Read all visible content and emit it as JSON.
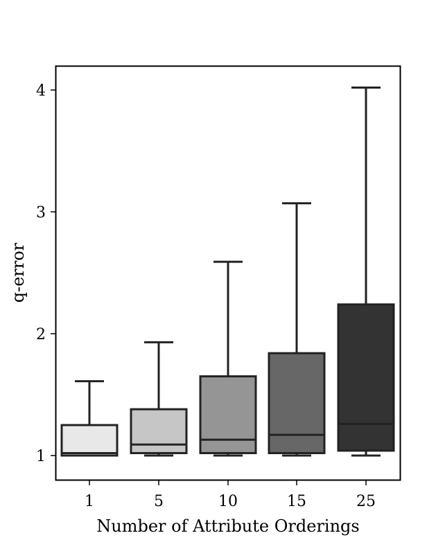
{
  "chart_data": {
    "type": "box",
    "title": "",
    "xlabel": "Number of Attribute Orderings",
    "ylabel": "q-error",
    "categories": [
      "1",
      "5",
      "10",
      "15",
      "25"
    ],
    "yticks": [
      1,
      2,
      3,
      4
    ],
    "ylim": [
      0.8,
      4.2
    ],
    "grid": false,
    "legend": null,
    "boxes": [
      {
        "category": "1",
        "whisker_low": 1.0,
        "q1": 1.0,
        "median": 1.02,
        "q3": 1.25,
        "whisker_high": 1.61,
        "fill": "#e8e8e8"
      },
      {
        "category": "5",
        "whisker_low": 1.0,
        "q1": 1.02,
        "median": 1.09,
        "q3": 1.38,
        "whisker_high": 1.93,
        "fill": "#c6c6c6"
      },
      {
        "category": "10",
        "whisker_low": 1.0,
        "q1": 1.02,
        "median": 1.13,
        "q3": 1.65,
        "whisker_high": 2.59,
        "fill": "#959595"
      },
      {
        "category": "15",
        "whisker_low": 1.0,
        "q1": 1.02,
        "median": 1.17,
        "q3": 1.84,
        "whisker_high": 3.07,
        "fill": "#676767"
      },
      {
        "category": "25",
        "whisker_low": 1.0,
        "q1": 1.04,
        "median": 1.26,
        "q3": 2.24,
        "whisker_high": 4.02,
        "fill": "#333333"
      }
    ]
  }
}
